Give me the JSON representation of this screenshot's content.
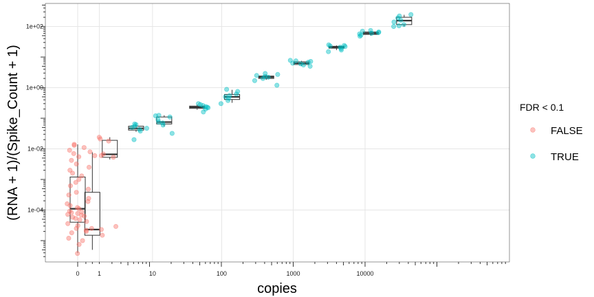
{
  "chart_data": {
    "type": "box+scatter",
    "xlabel": "copies",
    "ylabel": "(RNA + 1)/(Spike_Count + 1)",
    "x_scale": "log10(x+1)",
    "y_scale": "log10",
    "x_ticks": [
      {
        "value": 0,
        "label": "0"
      },
      {
        "value": 1,
        "label": "1"
      },
      {
        "value": 10,
        "label": "10"
      },
      {
        "value": 100,
        "label": "100"
      },
      {
        "value": 1000,
        "label": "1000"
      },
      {
        "value": 10000,
        "label": "10000"
      }
    ],
    "y_ticks": [
      {
        "value": 0.0001,
        "label": "1e-04"
      },
      {
        "value": 0.01,
        "label": "1e-02"
      },
      {
        "value": 1,
        "label": "1e+00"
      },
      {
        "value": 100,
        "label": "1e+02"
      }
    ],
    "grid": true,
    "legend": {
      "title": "FDR < 0.1",
      "position": "right",
      "entries": [
        {
          "label": "FALSE",
          "color": "#F8766D"
        },
        {
          "label": "TRUE",
          "color": "#00BFC4"
        }
      ]
    },
    "groups": [
      {
        "copies": 0,
        "fdr": "FALSE",
        "box": {
          "q1": 4e-05,
          "median": 0.00011,
          "q3": 0.0012,
          "lo": 4e-06,
          "hi": 0.014
        },
        "points": [
          3.8e-06,
          7.5e-06,
          1.2e-05,
          1.8e-05,
          2.5e-05,
          3.1e-05,
          3.6e-05,
          4.2e-05,
          4.8e-05,
          5.3e-05,
          5.8e-05,
          6.3e-05,
          6.8e-05,
          7.2e-05,
          7.7e-05,
          8.2e-05,
          8.7e-05,
          9.2e-05,
          0.00011,
          0.00012,
          0.00014,
          0.00016,
          0.00019,
          0.00024,
          0.00031,
          0.00038,
          0.00048,
          0.00062,
          0.0008,
          0.001,
          0.0013,
          0.0016,
          0.002,
          0.0025,
          0.0032,
          0.0042,
          0.0055,
          0.007,
          0.009,
          0.011,
          0.013,
          0.014
        ]
      },
      {
        "copies": 0.6,
        "fdr": "FALSE",
        "box": {
          "q1": 1.5e-05,
          "median": 2.3e-05,
          "q3": 0.00038,
          "lo": 5e-06,
          "hi": 0.0077
        },
        "points": [
          1e-05,
          1.5e-05,
          2e-05,
          2.3e-05,
          2.5e-05,
          2.2e-05,
          0.006,
          0.008
        ]
      },
      {
        "copies": 1.8,
        "fdr": "FALSE",
        "box": {
          "q1": 0.0053,
          "median": 0.0066,
          "q3": 0.019,
          "lo": 0.0045,
          "hi": 0.024
        },
        "points": [
          2.9e-05,
          0.0053,
          0.006,
          0.0068,
          0.018,
          0.021,
          0.024
        ]
      },
      {
        "copies": 5.5,
        "fdr": "TRUE",
        "box": {
          "q1": 0.041,
          "median": 0.047,
          "q3": 0.055,
          "lo": 0.036,
          "hi": 0.065
        },
        "points": [
          0.02,
          0.038,
          0.043,
          0.047,
          0.05,
          0.055,
          0.062,
          0.065
        ]
      },
      {
        "copies": 15,
        "fdr": "TRUE",
        "box": {
          "q1": 0.065,
          "median": 0.075,
          "q3": 0.11,
          "lo": 0.055,
          "hi": 0.125
        },
        "points": [
          0.032,
          0.06,
          0.07,
          0.075,
          0.09,
          0.11,
          0.12,
          0.125
        ]
      },
      {
        "copies": 45,
        "fdr": "TRUE",
        "box": {
          "q1": 0.21,
          "median": 0.23,
          "q3": 0.25,
          "lo": 0.19,
          "hi": 0.28
        },
        "points": [
          0.16,
          0.2,
          0.22,
          0.23,
          0.24,
          0.26,
          0.28,
          0.3
        ]
      },
      {
        "copies": 140,
        "fdr": "TRUE",
        "box": {
          "q1": 0.41,
          "median": 0.5,
          "q3": 0.6,
          "lo": 0.32,
          "hi": 0.85
        },
        "points": [
          0.3,
          0.38,
          0.45,
          0.5,
          0.55,
          0.62,
          0.75,
          0.88
        ]
      },
      {
        "copies": 420,
        "fdr": "TRUE",
        "box": {
          "q1": 2.0,
          "median": 2.2,
          "q3": 2.4,
          "lo": 1.8,
          "hi": 2.7
        },
        "points": [
          1.2,
          1.7,
          2.0,
          2.2,
          2.3,
          2.5,
          2.7,
          2.9
        ]
      },
      {
        "copies": 1300,
        "fdr": "TRUE",
        "box": {
          "q1": 5.7,
          "median": 6.3,
          "q3": 7.0,
          "lo": 5.2,
          "hi": 7.5
        },
        "points": [
          5.0,
          5.5,
          6.0,
          6.3,
          6.8,
          7.2,
          7.5,
          7.8
        ]
      },
      {
        "copies": 4000,
        "fdr": "TRUE",
        "box": {
          "q1": 19.5,
          "median": 21,
          "q3": 22.5,
          "lo": 17,
          "hi": 24
        },
        "points": [
          15,
          17,
          19,
          21,
          22,
          23,
          24,
          25
        ]
      },
      {
        "copies": 12000,
        "fdr": "TRUE",
        "box": {
          "q1": 55,
          "median": 60,
          "q3": 66,
          "lo": 50,
          "hi": 72
        },
        "points": [
          48,
          52,
          57,
          60,
          63,
          66,
          70,
          74
        ]
      },
      {
        "copies": 35000,
        "fdr": "TRUE",
        "box": {
          "q1": 115,
          "median": 155,
          "q3": 200,
          "lo": 100,
          "hi": 240
        },
        "points": [
          100,
          105,
          115,
          140,
          160,
          190,
          220,
          245
        ]
      }
    ]
  }
}
